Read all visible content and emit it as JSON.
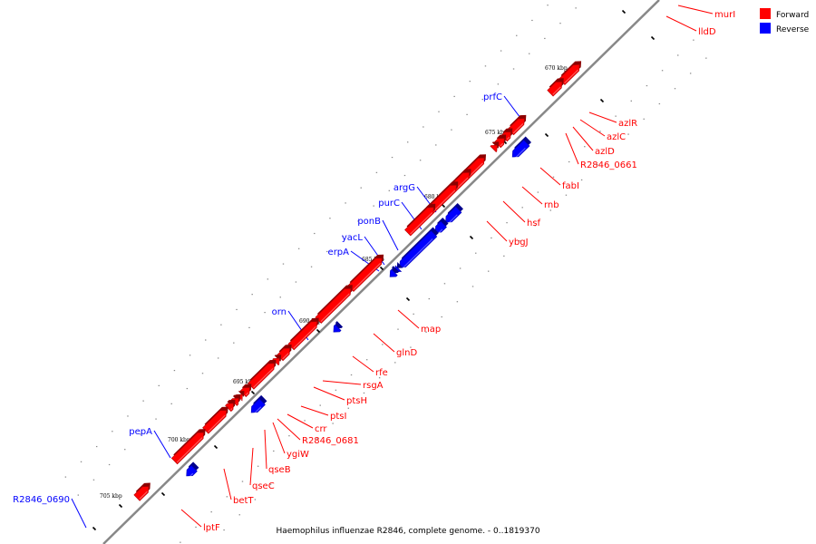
{
  "caption": "Haemophilus influenzae R2846, complete genome. - 0..1819370",
  "legend": [
    {
      "label": "Forward",
      "color": "#ff0000"
    },
    {
      "label": "Reverse",
      "color": "#0000ff"
    }
  ],
  "colors": {
    "forward": "#ff0000",
    "reverse": "#0000ff",
    "backbone": "#888888"
  },
  "ticks": [
    "670 kbp",
    "675 kbp",
    "680 kbp",
    "685 kbp",
    "690 kbp",
    "695 kbp",
    "700 kbp",
    "705 kbp"
  ],
  "genes": [
    {
      "name": "murI",
      "strand": "forward"
    },
    {
      "name": "lldD",
      "strand": "forward"
    },
    {
      "name": "azlR",
      "strand": "forward"
    },
    {
      "name": "azlC",
      "strand": "forward"
    },
    {
      "name": "azlD",
      "strand": "forward"
    },
    {
      "name": "R2846_0661",
      "strand": "forward"
    },
    {
      "name": "fabI",
      "strand": "forward"
    },
    {
      "name": "rnb",
      "strand": "forward"
    },
    {
      "name": "hsf",
      "strand": "forward"
    },
    {
      "name": "ybgJ",
      "strand": "forward"
    },
    {
      "name": "map",
      "strand": "forward"
    },
    {
      "name": "glnD",
      "strand": "forward"
    },
    {
      "name": "rfe",
      "strand": "forward"
    },
    {
      "name": "rsgA",
      "strand": "forward"
    },
    {
      "name": "ptsH",
      "strand": "forward"
    },
    {
      "name": "ptsI",
      "strand": "forward"
    },
    {
      "name": "crr",
      "strand": "forward"
    },
    {
      "name": "R2846_0681",
      "strand": "forward"
    },
    {
      "name": "ygiW",
      "strand": "forward"
    },
    {
      "name": "qseB",
      "strand": "forward"
    },
    {
      "name": "qseC",
      "strand": "forward"
    },
    {
      "name": "betT",
      "strand": "forward"
    },
    {
      "name": "lptF",
      "strand": "forward"
    },
    {
      "name": "prfC",
      "strand": "reverse"
    },
    {
      "name": "argG",
      "strand": "reverse"
    },
    {
      "name": "purC",
      "strand": "reverse"
    },
    {
      "name": "ponB",
      "strand": "reverse"
    },
    {
      "name": "yacL",
      "strand": "reverse"
    },
    {
      "name": "erpA",
      "strand": "reverse"
    },
    {
      "name": "orn",
      "strand": "reverse"
    },
    {
      "name": "pepA",
      "strand": "reverse"
    },
    {
      "name": "R2846_0690",
      "strand": "reverse"
    }
  ]
}
